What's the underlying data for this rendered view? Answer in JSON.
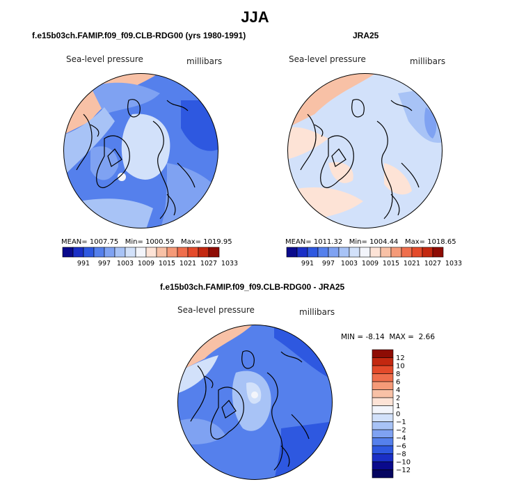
{
  "title": "JJA",
  "panels": [
    {
      "id": "model",
      "title": "f.e15b03ch.FAMIP.f09_f09.CLB-RDG00 (yrs 1980-1991)",
      "variable": "Sea-level pressure",
      "units": "millibars",
      "stats": {
        "mean": "1007.75",
        "min": "1000.59",
        "max": "1019.95",
        "mean_label": "MEAN=",
        "min_label": "Min=",
        "max_label": "Max="
      },
      "colorbar": {
        "levels": [
          "991",
          "997",
          "1003",
          "1009",
          "1015",
          "1021",
          "1027",
          "1033"
        ],
        "colors": [
          "#0a0a8c",
          "#1a2fc6",
          "#2e58e0",
          "#5580ec",
          "#7fa2f2",
          "#a8c3f6",
          "#d2e1fa",
          "#f3f5fb",
          "#fde3d6",
          "#f8c1a6",
          "#f59a78",
          "#ef6e4c",
          "#e44a2a",
          "#c32810",
          "#8e0c04"
        ]
      }
    },
    {
      "id": "obs",
      "title": "JRA25",
      "variable": "Sea-level pressure",
      "units": "millibars",
      "stats": {
        "mean": "1011.32",
        "min": "1004.44",
        "max": "1018.65",
        "mean_label": "MEAN=",
        "min_label": "Min=",
        "max_label": "Max="
      },
      "colorbar": {
        "levels": [
          "991",
          "997",
          "1003",
          "1009",
          "1015",
          "1021",
          "1027",
          "1033"
        ],
        "colors": [
          "#0a0a8c",
          "#1a2fc6",
          "#2e58e0",
          "#5580ec",
          "#7fa2f2",
          "#a8c3f6",
          "#d2e1fa",
          "#f3f5fb",
          "#fde3d6",
          "#f8c1a6",
          "#f59a78",
          "#ef6e4c",
          "#e44a2a",
          "#c32810",
          "#8e0c04"
        ]
      }
    },
    {
      "id": "diff",
      "title": "f.e15b03ch.FAMIP.f09_f09.CLB-RDG00 - JRA25",
      "variable": "Sea-level pressure",
      "units": "millibars",
      "stats": {
        "min_label": "MIN =",
        "min": "-8.14",
        "max_label": "MAX =",
        "max": "2.66"
      },
      "colorbar": {
        "levels": [
          "12",
          "10",
          "8",
          "6",
          "4",
          "2",
          "1",
          "0",
          "−1",
          "−2",
          "−4",
          "−6",
          "−8",
          "−10",
          "−12"
        ],
        "colors": [
          "#8e0c04",
          "#c32810",
          "#e44a2a",
          "#ef6e4c",
          "#f59a78",
          "#f8c1a6",
          "#fde3d6",
          "#f3f5fb",
          "#d2e1fa",
          "#a8c3f6",
          "#7fa2f2",
          "#5580ec",
          "#2e58e0",
          "#1a2fc6",
          "#0a0a8c",
          "#050560"
        ]
      }
    }
  ]
}
